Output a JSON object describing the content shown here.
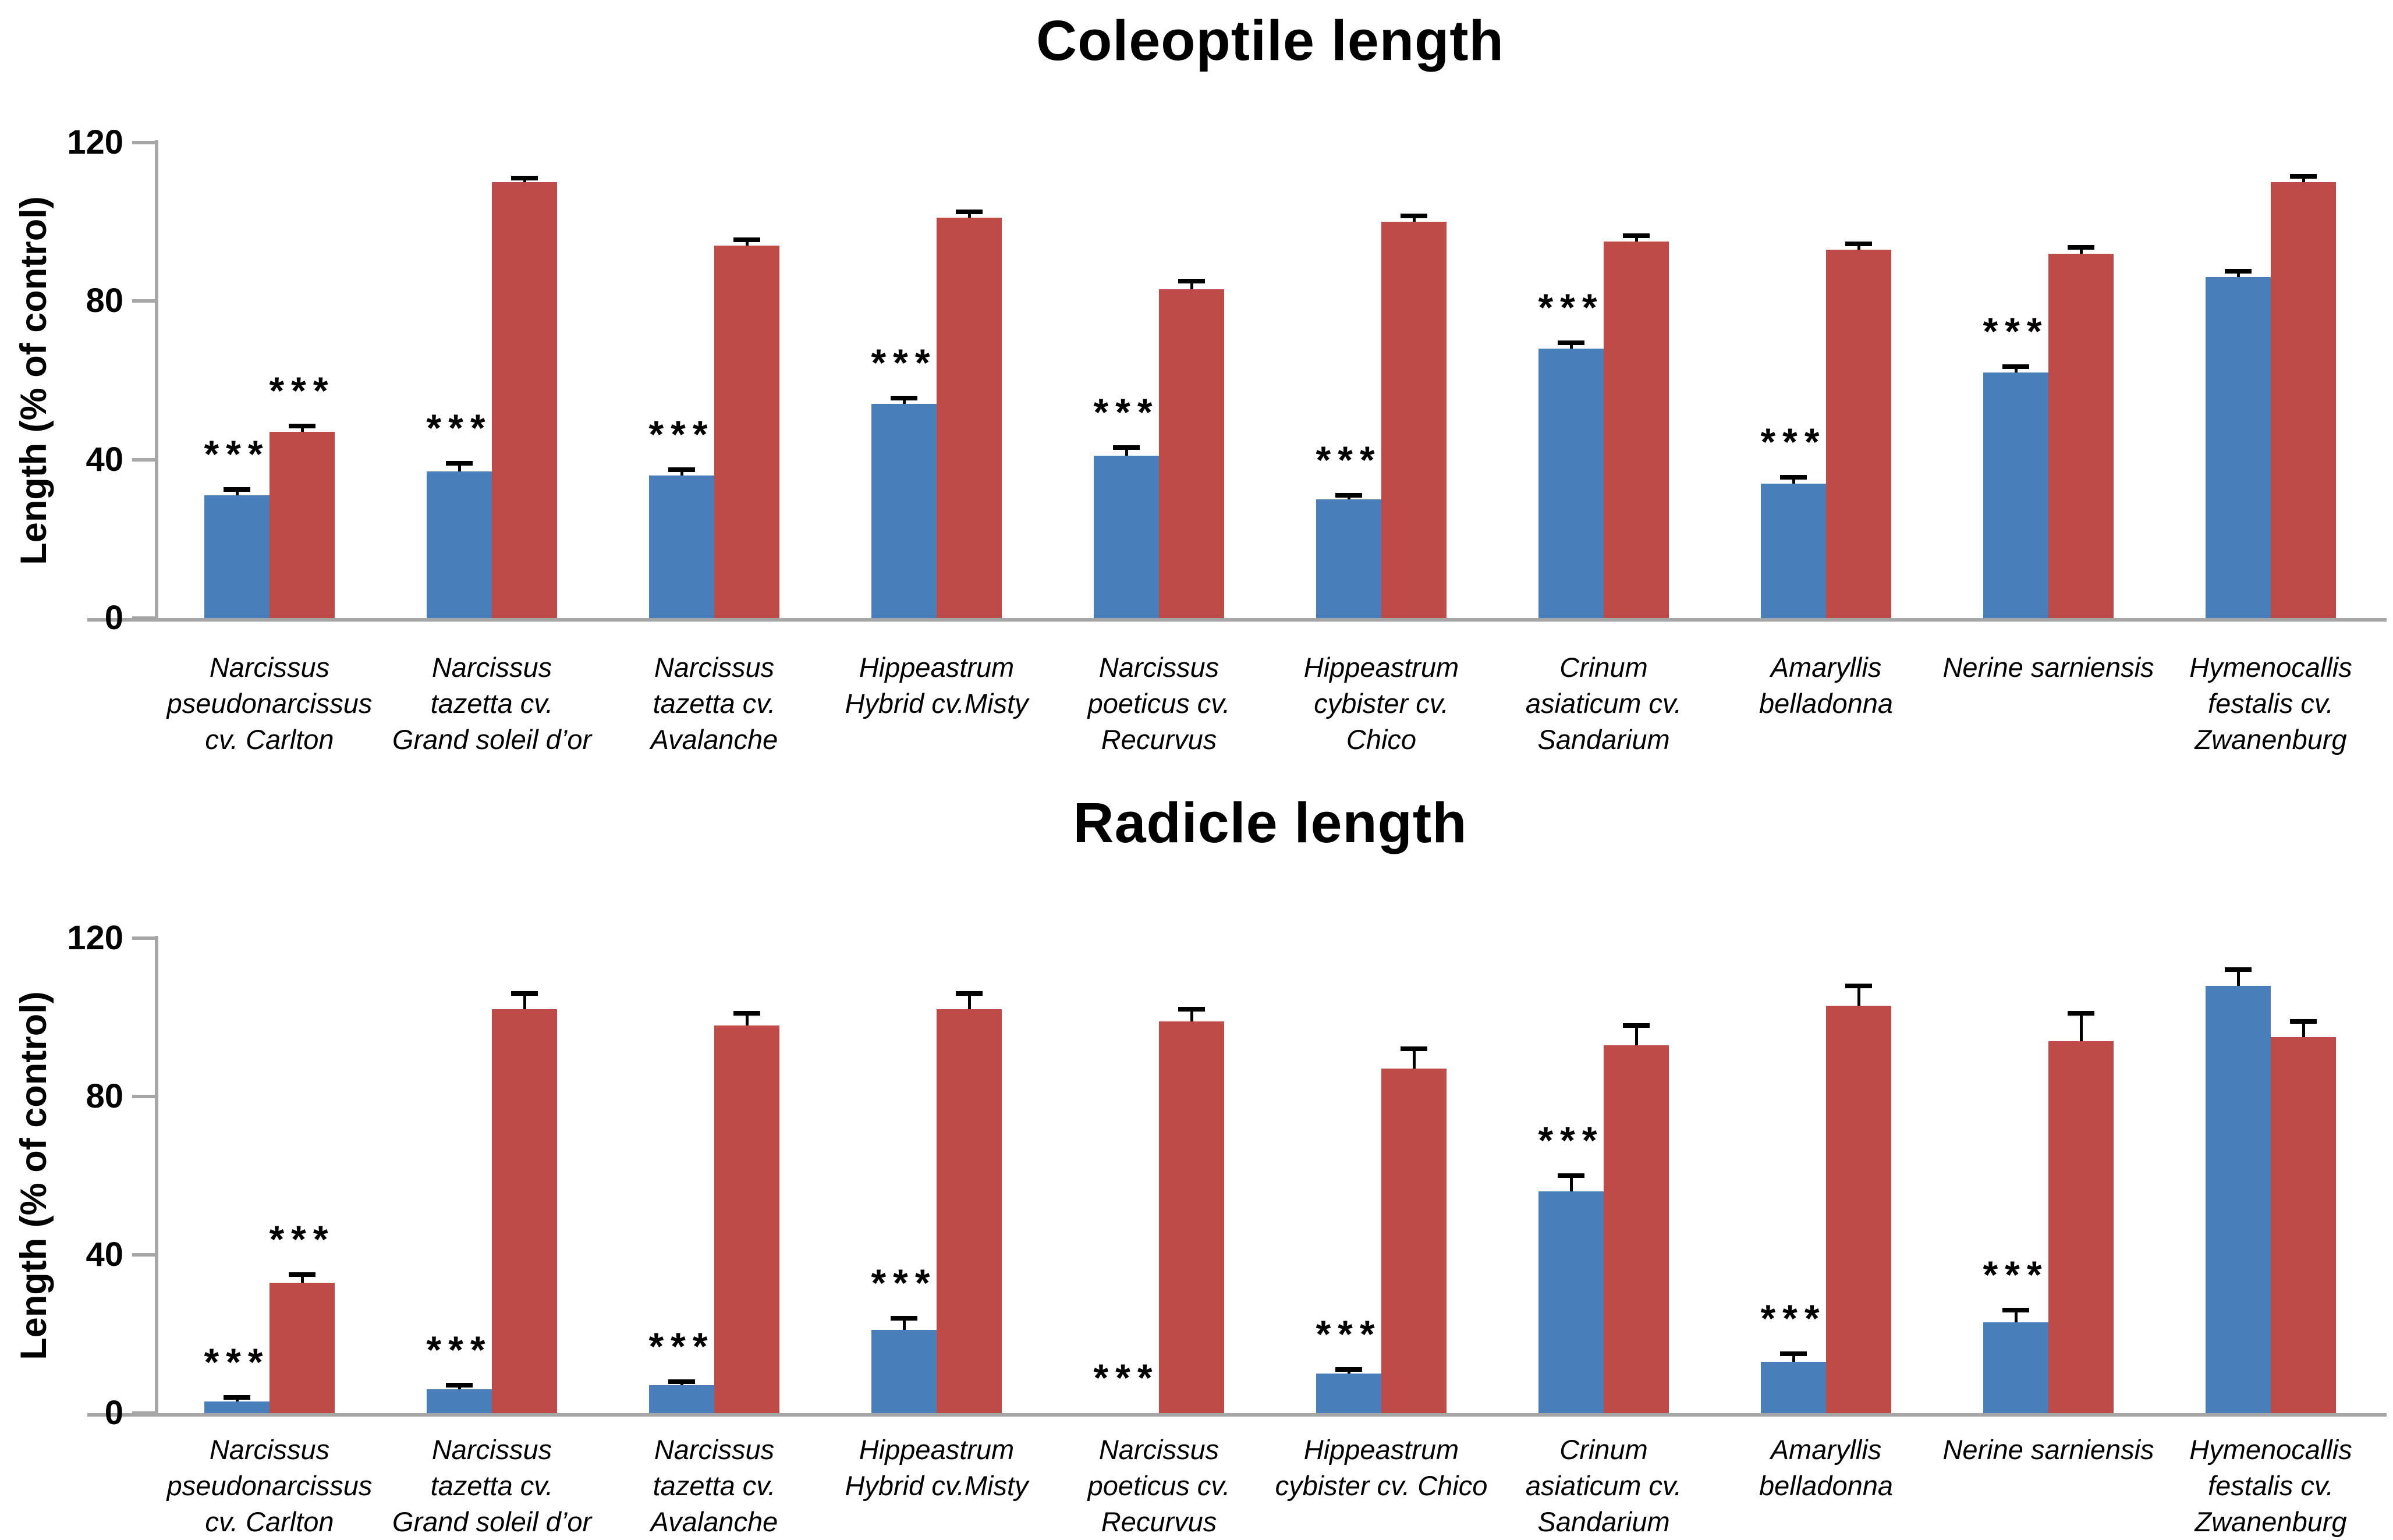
{
  "figure": {
    "background": "#FFFFFF"
  },
  "colors": {
    "series_blue": "#4A7EBB",
    "series_red": "#BE4B48",
    "axis_gray": "#A6A6A6",
    "error_bar_black": "#000000",
    "text_black": "#000000"
  },
  "significance_marker": "***",
  "chart_data": [
    {
      "type": "bar",
      "title": "Coleoptile length",
      "ylabel": "Length (% of control)",
      "xlabel": "",
      "ylim": [
        0,
        120
      ],
      "yticks": [
        0,
        40,
        80,
        120
      ],
      "grid": false,
      "legend": "none",
      "categories": [
        [
          "Narcissus",
          "pseudonarcissus",
          "cv. Carlton"
        ],
        [
          "Narcissus",
          "tazetta cv.",
          "Grand soleil d’or"
        ],
        [
          "Narcissus",
          "tazetta cv.",
          "Avalanche"
        ],
        [
          "Hippeastrum",
          "Hybrid cv.Misty"
        ],
        [
          "Narcissus",
          "poeticus cv.",
          "Recurvus"
        ],
        [
          "Hippeastrum",
          "cybister cv.",
          "Chico"
        ],
        [
          "Crinum",
          "asiaticum cv.",
          "Sandarium"
        ],
        [
          "Amaryllis",
          "belladonna"
        ],
        [
          "Nerine sarniensis"
        ],
        [
          "Hymenocallis",
          "festalis cv.",
          "Zwanenburg"
        ]
      ],
      "series": [
        {
          "name": "blue",
          "color": "#4A7EBB",
          "values": [
            31,
            37,
            36,
            54,
            41,
            30,
            68,
            34,
            62,
            86
          ],
          "errors": [
            1.5,
            2,
            1.5,
            1.5,
            2,
            1,
            1.5,
            1.5,
            1.5,
            1.5
          ],
          "significance": [
            true,
            true,
            true,
            true,
            true,
            true,
            true,
            true,
            true,
            false
          ]
        },
        {
          "name": "red",
          "color": "#BE4B48",
          "values": [
            47,
            110,
            94,
            101,
            83,
            100,
            95,
            93,
            92,
            110
          ],
          "errors": [
            1.5,
            1,
            1.5,
            1.5,
            2,
            1.5,
            1.5,
            1.5,
            1.5,
            1.5
          ],
          "significance": [
            true,
            false,
            false,
            false,
            false,
            false,
            false,
            false,
            false,
            false
          ]
        }
      ]
    },
    {
      "type": "bar",
      "title": "Radicle length",
      "ylabel": "Length (% of control)",
      "xlabel": "",
      "ylim": [
        0,
        120
      ],
      "yticks": [
        0,
        40,
        80,
        120
      ],
      "grid": false,
      "legend": "none",
      "categories": [
        [
          "Narcissus",
          "pseudonarcissus",
          "cv. Carlton"
        ],
        [
          "Narcissus",
          "tazetta cv.",
          "Grand soleil d’or"
        ],
        [
          "Narcissus",
          "tazetta cv.",
          "Avalanche"
        ],
        [
          "Hippeastrum",
          "Hybrid cv.Misty"
        ],
        [
          "Narcissus",
          "poeticus cv.",
          "Recurvus"
        ],
        [
          "Hippeastrum",
          "cybister cv. Chico"
        ],
        [
          "Crinum",
          "asiaticum cv.",
          "Sandarium"
        ],
        [
          "Amaryllis",
          "belladonna"
        ],
        [
          "Nerine sarniensis"
        ],
        [
          "Hymenocallis",
          "festalis cv.",
          "Zwanenburg"
        ]
      ],
      "series": [
        {
          "name": "blue",
          "color": "#4A7EBB",
          "values": [
            3,
            6,
            7,
            21,
            0,
            10,
            56,
            13,
            23,
            108
          ],
          "errors": [
            1,
            1,
            1,
            3,
            0,
            1,
            4,
            2,
            3,
            4
          ],
          "significance": [
            true,
            true,
            true,
            true,
            true,
            true,
            true,
            true,
            true,
            false
          ]
        },
        {
          "name": "red",
          "color": "#BE4B48",
          "values": [
            33,
            102,
            98,
            102,
            99,
            87,
            93,
            103,
            94,
            95
          ],
          "errors": [
            2,
            4,
            3,
            4,
            3,
            5,
            5,
            5,
            7,
            4
          ],
          "significance": [
            true,
            false,
            false,
            false,
            false,
            false,
            false,
            false,
            false,
            false
          ]
        }
      ]
    }
  ]
}
